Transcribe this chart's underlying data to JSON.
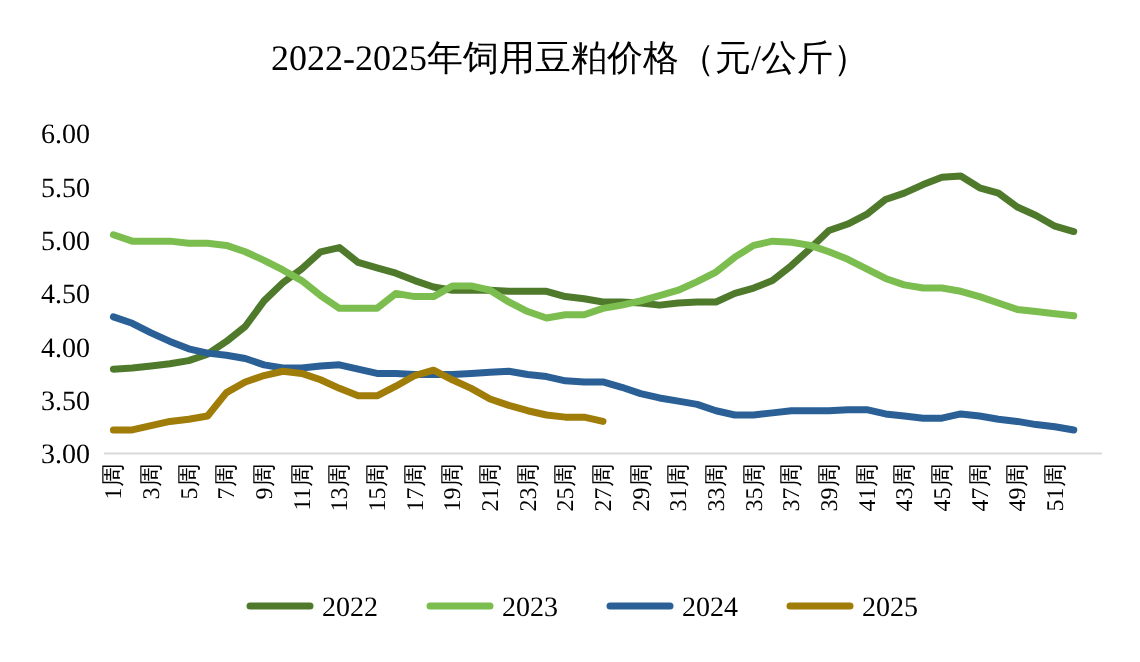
{
  "chart_data": {
    "type": "line",
    "title": "2022-2025年饲用豆粕价格（元/公斤）",
    "categories": [
      "1周",
      null,
      "3周",
      null,
      "5周",
      null,
      "7周",
      null,
      "9周",
      null,
      "11周",
      null,
      "13周",
      null,
      "15周",
      null,
      "17周",
      null,
      "19周",
      null,
      "21周",
      null,
      "23周",
      null,
      "25周",
      null,
      "27周",
      null,
      "29周",
      null,
      "31周",
      null,
      "33周",
      null,
      "35周",
      null,
      "37周",
      null,
      "39周",
      null,
      "41周",
      null,
      "43周",
      null,
      "45周",
      null,
      "47周",
      null,
      "49周",
      null,
      "51周",
      null
    ],
    "ylim": [
      3,
      6
    ],
    "yticks": [
      {
        "value": 3,
        "label": "3.00"
      },
      {
        "value": 3.5,
        "label": "3.50"
      },
      {
        "value": 4,
        "label": "4.00"
      },
      {
        "value": 4.5,
        "label": "4.50"
      },
      {
        "value": 5,
        "label": "5.00"
      },
      {
        "value": 5.5,
        "label": "5.50"
      },
      {
        "value": 6,
        "label": "6.00"
      }
    ],
    "grid": false,
    "legend": "bottom",
    "marker": "none",
    "line_style": "solid",
    "series": [
      {
        "name": "2022",
        "color": "#4f7a2c",
        "values": [
          3.79,
          3.8,
          3.82,
          3.84,
          3.87,
          3.93,
          4.05,
          4.19,
          4.43,
          4.6,
          4.73,
          4.89,
          4.93,
          4.79,
          4.74,
          4.69,
          4.62,
          4.56,
          4.53,
          4.53,
          4.53,
          4.52,
          4.52,
          4.52,
          4.47,
          4.45,
          4.42,
          4.42,
          4.41,
          4.39,
          4.41,
          4.42,
          4.42,
          4.5,
          4.55,
          4.62,
          4.76,
          4.92,
          5.09,
          5.15,
          5.24,
          5.38,
          5.44,
          5.52,
          5.59,
          5.6,
          5.49,
          5.44,
          5.31,
          5.23,
          5.13,
          5.08
        ]
      },
      {
        "name": "2023",
        "color": "#7cbd4f",
        "values": [
          5.05,
          4.99,
          4.99,
          4.99,
          4.97,
          4.97,
          4.95,
          4.89,
          4.81,
          4.72,
          4.62,
          4.48,
          4.36,
          4.36,
          4.36,
          4.5,
          4.47,
          4.47,
          4.57,
          4.57,
          4.53,
          4.42,
          4.33,
          4.27,
          4.3,
          4.3,
          4.36,
          4.39,
          4.43,
          4.48,
          4.53,
          4.61,
          4.7,
          4.84,
          4.95,
          4.99,
          4.98,
          4.95,
          4.89,
          4.82,
          4.73,
          4.64,
          4.58,
          4.55,
          4.55,
          4.52,
          4.47,
          4.41,
          4.35,
          4.33,
          4.31,
          4.29
        ]
      },
      {
        "name": "2024",
        "color": "#2a6096",
        "values": [
          4.28,
          4.22,
          4.13,
          4.05,
          3.98,
          3.94,
          3.92,
          3.89,
          3.83,
          3.8,
          3.8,
          3.82,
          3.83,
          3.79,
          3.75,
          3.75,
          3.74,
          3.74,
          3.74,
          3.75,
          3.76,
          3.77,
          3.74,
          3.72,
          3.68,
          3.67,
          3.67,
          3.62,
          3.56,
          3.52,
          3.49,
          3.46,
          3.4,
          3.36,
          3.36,
          3.38,
          3.4,
          3.4,
          3.4,
          3.41,
          3.41,
          3.37,
          3.35,
          3.33,
          3.33,
          3.37,
          3.35,
          3.32,
          3.3,
          3.27,
          3.25,
          3.22
        ]
      },
      {
        "name": "2025",
        "color": "#a07c08",
        "values": [
          3.22,
          3.22,
          3.26,
          3.3,
          3.32,
          3.35,
          3.57,
          3.67,
          3.73,
          3.77,
          3.75,
          3.69,
          3.61,
          3.54,
          3.54,
          3.63,
          3.73,
          3.78,
          3.69,
          3.61,
          3.51,
          3.45,
          3.4,
          3.36,
          3.34,
          3.34,
          3.3,
          null,
          null,
          null,
          null,
          null,
          null,
          null,
          null,
          null,
          null,
          null,
          null,
          null,
          null,
          null,
          null,
          null,
          null,
          null,
          null,
          null,
          null,
          null,
          null,
          null
        ]
      }
    ]
  }
}
